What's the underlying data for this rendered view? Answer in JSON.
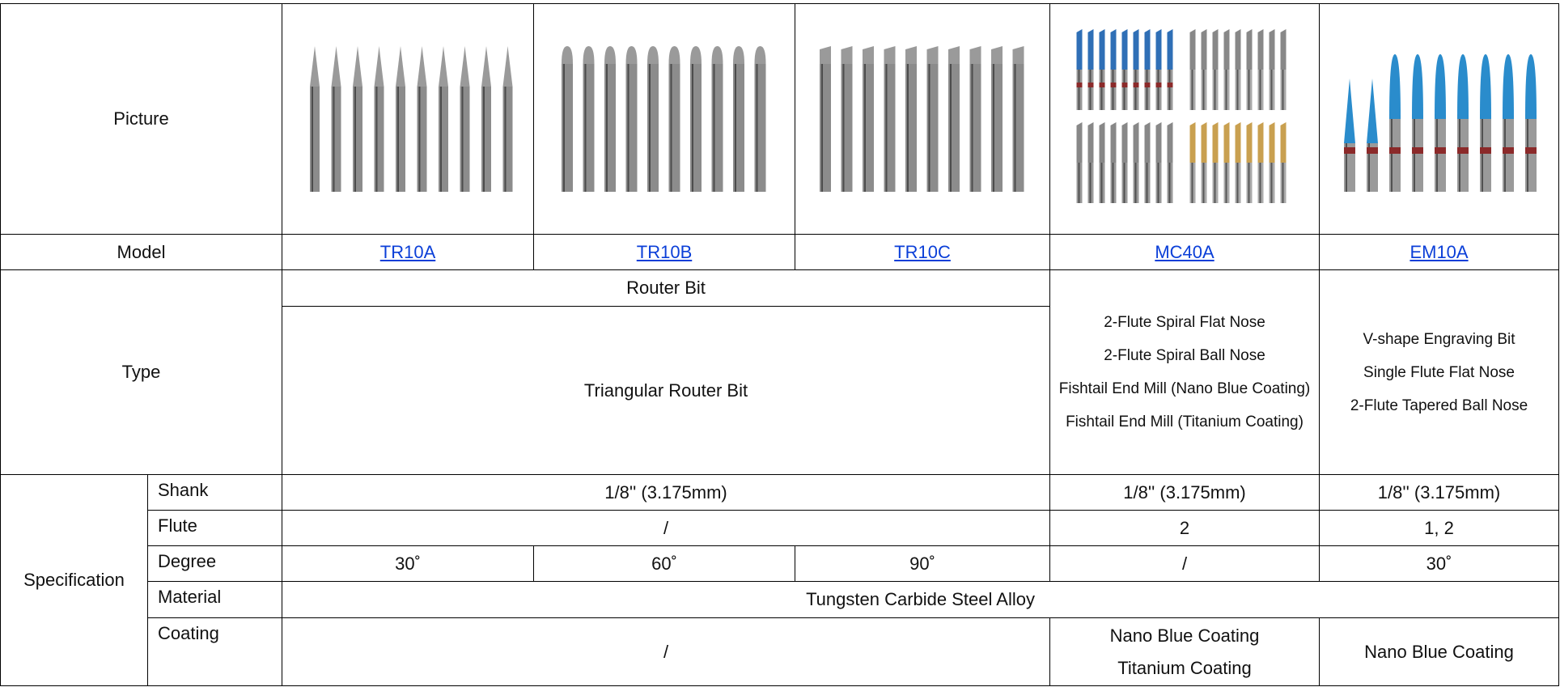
{
  "header": {
    "picture": "Picture",
    "model": "Model",
    "type": "Type",
    "specification": "Specification"
  },
  "models": [
    "TR10A",
    "TR10B",
    "TR10C",
    "MC40A",
    "EM10A"
  ],
  "type": {
    "router_group": "Router Bit",
    "router_sub": "Triangular Router Bit",
    "mc40a": [
      "2-Flute Spiral Flat Nose",
      "2-Flute Spiral Ball Nose",
      "Fishtail End Mill (Nano Blue Coating)",
      "Fishtail End Mill (Titanium Coating)"
    ],
    "em10a": [
      "V-shape Engraving Bit",
      "Single Flute Flat Nose",
      "2-Flute Tapered Ball Nose"
    ]
  },
  "spec": {
    "shank": {
      "label": "Shank",
      "router": "1/8'' (3.175mm)",
      "mc40a": "1/8'' (3.175mm)",
      "em10a": "1/8'' (3.175mm)"
    },
    "flute": {
      "label": "Flute",
      "router": "/",
      "mc40a": "2",
      "em10a": "1, 2"
    },
    "degree": {
      "label": "Degree",
      "values": [
        "30˚",
        "60˚",
        "90˚",
        "/",
        "30˚"
      ]
    },
    "material": {
      "label": "Material",
      "value": "Tungsten Carbide Steel Alloy"
    },
    "coating": {
      "label": "Coating",
      "router": "/",
      "mc40a": [
        "Nano Blue Coating",
        "Titanium Coating"
      ],
      "em10a": "Nano Blue Coating"
    }
  }
}
